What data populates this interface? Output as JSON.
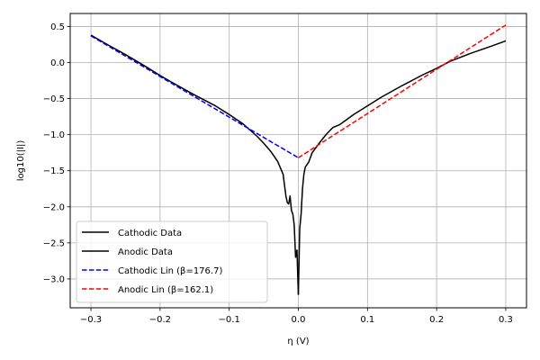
{
  "chart_data": {
    "type": "line",
    "title": "",
    "xlabel": "η (V)",
    "ylabel": "log10(|I|)",
    "xlim": [
      -0.33,
      0.33
    ],
    "ylim": [
      -3.4,
      0.68
    ],
    "grid": true,
    "legend_position": "lower-left",
    "x_ticks": [
      -0.3,
      -0.2,
      -0.1,
      0.0,
      0.1,
      0.2,
      0.3
    ],
    "x_tick_labels": [
      "−0.3",
      "−0.2",
      "−0.1",
      "0.0",
      "0.1",
      "0.2",
      "0.3"
    ],
    "y_ticks": [
      0.5,
      0.0,
      -0.5,
      -1.0,
      -1.5,
      -2.0,
      -2.5,
      -3.0
    ],
    "y_tick_labels": [
      "0.5",
      "0.0",
      "−0.5",
      "−1.0",
      "−1.5",
      "−2.0",
      "−2.5",
      "−3.0"
    ],
    "series": [
      {
        "name": "Cathodic Data",
        "color": "#000000",
        "dash": "solid",
        "x": [
          -0.3,
          -0.28,
          -0.25,
          -0.22,
          -0.2,
          -0.18,
          -0.15,
          -0.12,
          -0.1,
          -0.08,
          -0.06,
          -0.05,
          -0.04,
          -0.03,
          -0.022,
          -0.018,
          -0.016,
          -0.014,
          -0.012,
          -0.01,
          -0.008,
          -0.006,
          -0.004,
          -0.002,
          0.0
        ],
        "y": [
          0.38,
          0.27,
          0.11,
          -0.06,
          -0.18,
          -0.29,
          -0.45,
          -0.6,
          -0.72,
          -0.85,
          -1.02,
          -1.12,
          -1.23,
          -1.37,
          -1.55,
          -1.85,
          -1.94,
          -1.96,
          -1.85,
          -2.05,
          -2.1,
          -2.25,
          -2.7,
          -2.6,
          -3.22
        ]
      },
      {
        "name": "Anodic Data",
        "color": "#000000",
        "dash": "solid",
        "x": [
          0.0,
          0.002,
          0.004,
          0.006,
          0.008,
          0.01,
          0.015,
          0.02,
          0.03,
          0.04,
          0.05,
          0.06,
          0.08,
          0.1,
          0.12,
          0.15,
          0.18,
          0.2,
          0.22,
          0.25,
          0.28,
          0.3
        ],
        "y": [
          -3.22,
          -2.3,
          -2.1,
          -1.75,
          -1.55,
          -1.45,
          -1.38,
          -1.25,
          -1.12,
          -1.0,
          -0.9,
          -0.86,
          -0.72,
          -0.6,
          -0.48,
          -0.32,
          -0.17,
          -0.08,
          0.02,
          0.13,
          0.23,
          0.3
        ]
      },
      {
        "name": "Cathodic Lin (β=176.7)",
        "color": "#0000ff",
        "dash": "dashed",
        "x": [
          -0.3,
          0.0
        ],
        "y": [
          0.37,
          -1.32
        ]
      },
      {
        "name": "Anodic Lin (β=162.1)",
        "color": "#ff0000",
        "dash": "dashed",
        "x": [
          0.0,
          0.3
        ],
        "y": [
          -1.32,
          0.52
        ]
      }
    ]
  }
}
